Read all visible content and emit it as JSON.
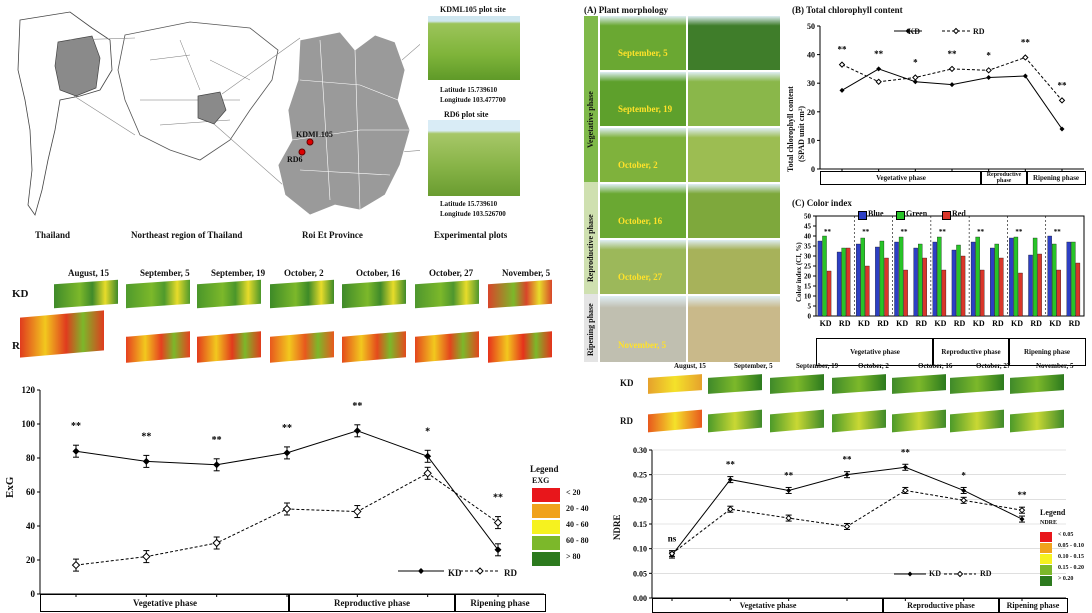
{
  "map": {
    "kdml_site_title": "KDML105 plot site",
    "kdml_lat": "Latitude 15.739610",
    "kdml_lon": "Longitude 103.477700",
    "rd_site_title": "RD6 plot site",
    "rd_lat": "Latitude 15.739610",
    "rd_lon": "Longitude 103.526700",
    "kdml_label": "KDML105",
    "rd_label": "RD6",
    "captions": [
      "Thailand",
      "Northeast region of Thailand",
      "Roi Et Province",
      "Experimental plots"
    ]
  },
  "exg_strip": {
    "dates": [
      "August, 15",
      "September, 5",
      "September, 19",
      "October, 2",
      "October, 16",
      "October, 27",
      "November, 5"
    ],
    "row_kd": "KD",
    "row_rd": "RD"
  },
  "morph": {
    "title": "(A) Plant morphology",
    "phase_veg": "Vegetative phase",
    "phase_rep": "Reproductive phase",
    "phase_rip": "Ripening phase",
    "dates": [
      "September, 5",
      "September, 19",
      "October, 2",
      "October, 16",
      "October, 27",
      "November, 5"
    ]
  },
  "chl_chart": {
    "title": "(B) Total chlorophyll content",
    "ylabel_1": "Total chlorophyll content",
    "ylabel_2": "(SPAD unit cm²)",
    "legend_kd": "KD",
    "legend_rd": "RD",
    "phases": [
      "Vegetative phase",
      "Reproductive phase",
      "Ripening phase"
    ]
  },
  "color_chart": {
    "title": "(C) Color index",
    "ylabel": "Color index (CI, %)",
    "legend": [
      "Blue",
      "Green",
      "Red"
    ],
    "x_groups": [
      "KD",
      "RD",
      "KD",
      "RD",
      "KD",
      "RD",
      "KD",
      "RD",
      "KD",
      "RD",
      "KD",
      "RD",
      "KD",
      "RD"
    ],
    "phases": [
      "Vegetative phase",
      "Reproductive phase",
      "Ripening phase"
    ]
  },
  "exg_chart": {
    "ylabel": "ExG",
    "legend_title": "Legend",
    "legend_sub": "EXG",
    "legend_items": [
      "< 20",
      "20 - 40",
      "40 - 60",
      "60 - 80",
      "> 80"
    ],
    "legend_colors": [
      "#e8161b",
      "#f0a21c",
      "#f6f21f",
      "#7cb82a",
      "#2c7a1e"
    ],
    "line_kd": "KD",
    "line_rd": "RD",
    "phases": [
      "Vegetative phase",
      "Reproductive phase",
      "Ripening phase"
    ]
  },
  "ndre_strip": {
    "dates": [
      "August, 15",
      "September, 5",
      "September, 19",
      "October, 2",
      "October, 16",
      "October, 27",
      "November, 5"
    ],
    "row_kd": "KD",
    "row_rd": "RD"
  },
  "ndre_chart": {
    "ylabel": "NDRE",
    "legend_title": "Legend",
    "legend_sub": "NDRE",
    "legend_items": [
      "< 0.05",
      "0.05 - 0.10",
      "0.10 - 0.15",
      "0.15 - 0.20",
      "> 0.20"
    ],
    "legend_colors": [
      "#e8161b",
      "#f0a21c",
      "#f6f21f",
      "#7cb82a",
      "#2c7a1e"
    ],
    "line_kd": "KD",
    "line_rd": "RD",
    "phases": [
      "Vegetative phase",
      "Reproductive phase",
      "Ripening phase"
    ]
  },
  "chart_data": [
    {
      "type": "line",
      "title": "(B) Total chlorophyll content",
      "ylabel": "Total chlorophyll content (SPAD unit cm²)",
      "ylim": [
        0,
        50
      ],
      "yticks": [
        0,
        10,
        20,
        30,
        40,
        50
      ],
      "series": [
        {
          "name": "KD",
          "values": [
            27.5,
            35,
            30.5,
            29.5,
            32,
            32.5,
            14
          ]
        },
        {
          "name": "RD",
          "values": [
            36.5,
            30.5,
            32,
            35,
            34.5,
            39,
            24
          ]
        }
      ],
      "significance": [
        "**",
        "**",
        "*",
        "**",
        "*",
        "**",
        "**"
      ]
    },
    {
      "type": "bar",
      "title": "(C) Color index",
      "ylabel": "Color index (CI, %)",
      "ylim": [
        0,
        50
      ],
      "yticks": [
        0,
        5,
        10,
        15,
        20,
        25,
        30,
        35,
        40,
        45,
        50
      ],
      "categories": [
        "KD",
        "RD",
        "KD",
        "RD",
        "KD",
        "RD",
        "KD",
        "RD",
        "KD",
        "RD",
        "KD",
        "RD",
        "KD",
        "RD"
      ],
      "series": [
        {
          "name": "Blue",
          "values": [
            37.5,
            32,
            36,
            34.5,
            37,
            34,
            37,
            33,
            37,
            34,
            39,
            30.5,
            40,
            37
          ]
        },
        {
          "name": "Green",
          "values": [
            40,
            34,
            39,
            37.5,
            39.5,
            36,
            39.5,
            35.5,
            39.5,
            36,
            39.5,
            39,
            36,
            37
          ]
        },
        {
          "name": "Red",
          "values": [
            22.5,
            34,
            25,
            29,
            23,
            29,
            23,
            30,
            23,
            29,
            21.5,
            31,
            23,
            26.5
          ]
        }
      ]
    },
    {
      "type": "line",
      "ylabel": "ExG",
      "ylim": [
        0,
        120
      ],
      "yticks": [
        0,
        20,
        40,
        60,
        80,
        100,
        120
      ],
      "x": [
        "August, 15",
        "September, 5",
        "September, 19",
        "October, 2",
        "October, 16",
        "October, 27",
        "November, 5"
      ],
      "series": [
        {
          "name": "KD",
          "values": [
            84,
            78,
            76,
            83,
            96,
            81,
            26
          ]
        },
        {
          "name": "RD",
          "values": [
            17,
            22,
            30,
            50,
            48.5,
            71,
            42
          ]
        }
      ],
      "significance": [
        "**",
        "**",
        "**",
        "**",
        "**",
        "*",
        "**"
      ]
    },
    {
      "type": "line",
      "ylabel": "NDRE",
      "ylim": [
        0,
        0.3
      ],
      "yticks": [
        0.0,
        0.05,
        0.1,
        0.15,
        0.2,
        0.25,
        0.3
      ],
      "x": [
        "August, 15",
        "September, 5",
        "September, 19",
        "October, 2",
        "October, 16",
        "October, 27",
        "November, 5"
      ],
      "series": [
        {
          "name": "KD",
          "values": [
            0.087,
            0.24,
            0.218,
            0.25,
            0.265,
            0.218,
            0.16
          ]
        },
        {
          "name": "RD",
          "values": [
            0.09,
            0.18,
            0.162,
            0.145,
            0.218,
            0.198,
            0.178
          ]
        }
      ],
      "significance": [
        "ns",
        "**",
        "**",
        "**",
        "**",
        "*",
        "**"
      ]
    }
  ]
}
